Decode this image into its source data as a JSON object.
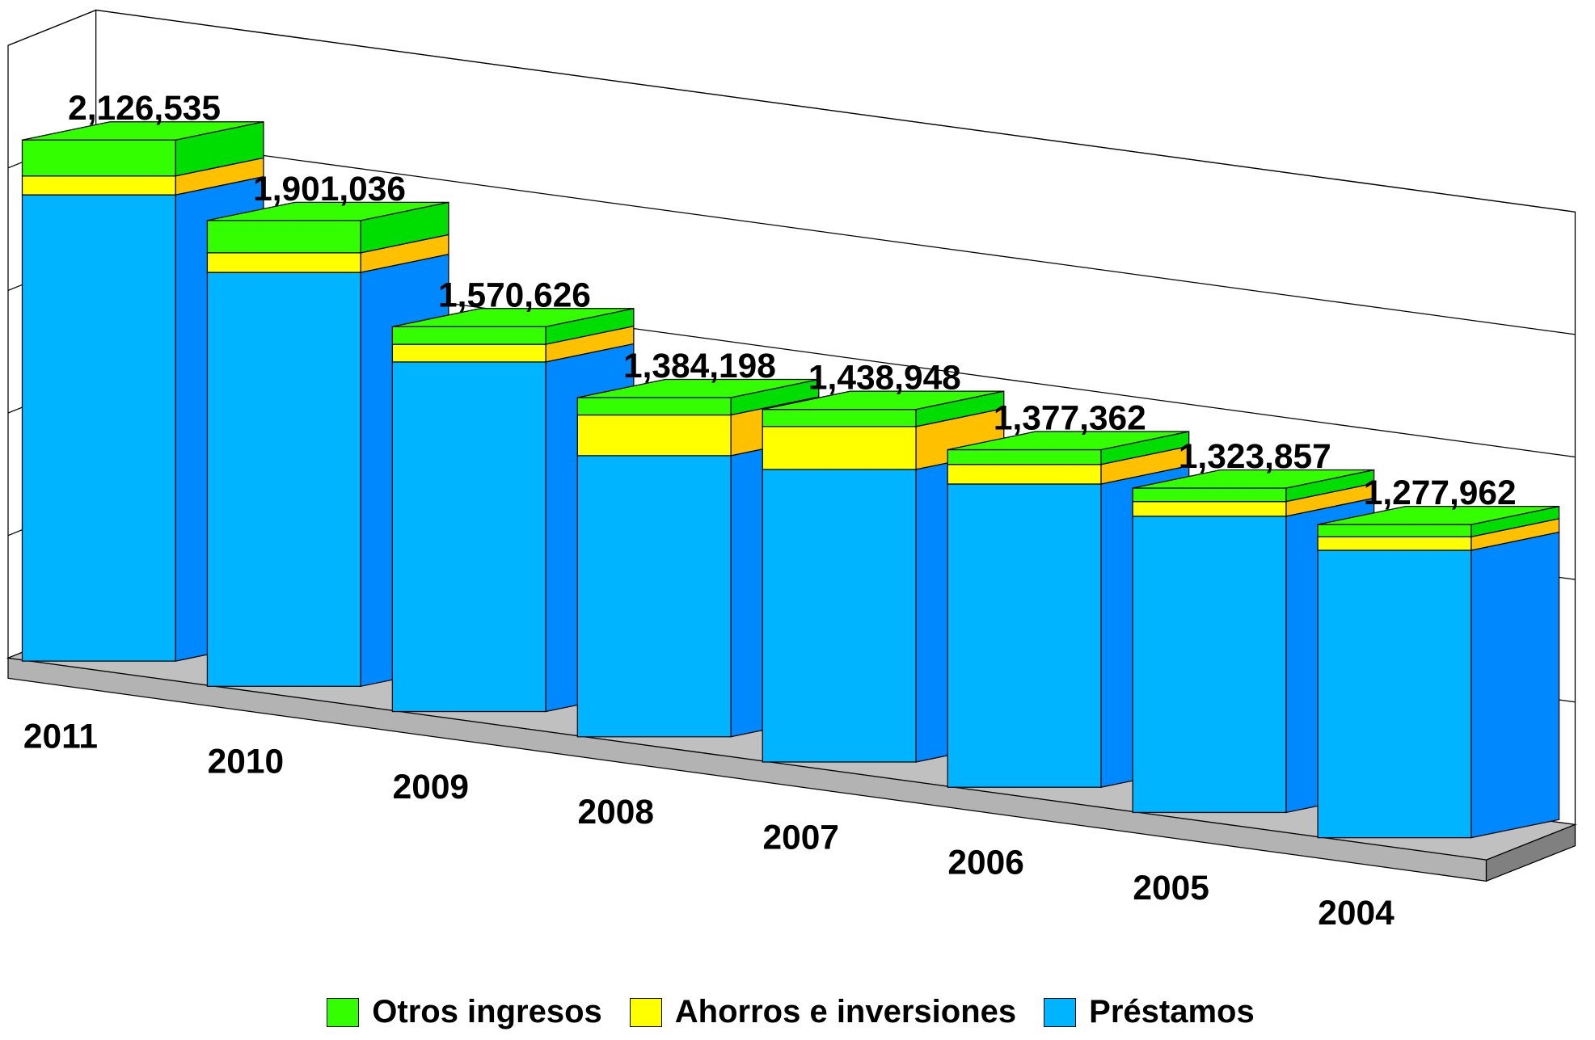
{
  "chart_data": {
    "type": "bar3d_stacked",
    "categories": [
      "2011",
      "2010",
      "2009",
      "2008",
      "2007",
      "2006",
      "2005",
      "2004"
    ],
    "series": [
      {
        "name": "Otros ingresos",
        "color": "#33ff00",
        "side_color": "#00dd00",
        "values": [
          147000,
          132000,
          72000,
          71000,
          70000,
          60000,
          55000,
          50000
        ]
      },
      {
        "name": "Ahorros e inversiones",
        "color": "#ffff00",
        "side_color": "#ffc000",
        "values": [
          77000,
          80000,
          72000,
          166000,
          175000,
          80000,
          60000,
          55000
        ]
      },
      {
        "name": "Préstamos",
        "color": "#00b4ff",
        "side_color": "#0088ff",
        "values": [
          1902535,
          1689036,
          1426626,
          1147198,
          1193948,
          1237362,
          1208857,
          1172962
        ]
      }
    ],
    "totals": {
      "values": [
        2126535,
        1901036,
        1570626,
        1384198,
        1438948,
        1377362,
        1323857,
        1277962
      ],
      "value_labels": [
        "2,126,535",
        "1,901,036",
        "1,570,626",
        "1,384,198",
        "1,438,948",
        "1,377,362",
        "1,323,857",
        "1,277,962"
      ]
    },
    "ylim": [
      0,
      2500000
    ],
    "yticks": [
      0,
      500000,
      1000000,
      1500000,
      2000000,
      2500000
    ],
    "grid": true
  }
}
